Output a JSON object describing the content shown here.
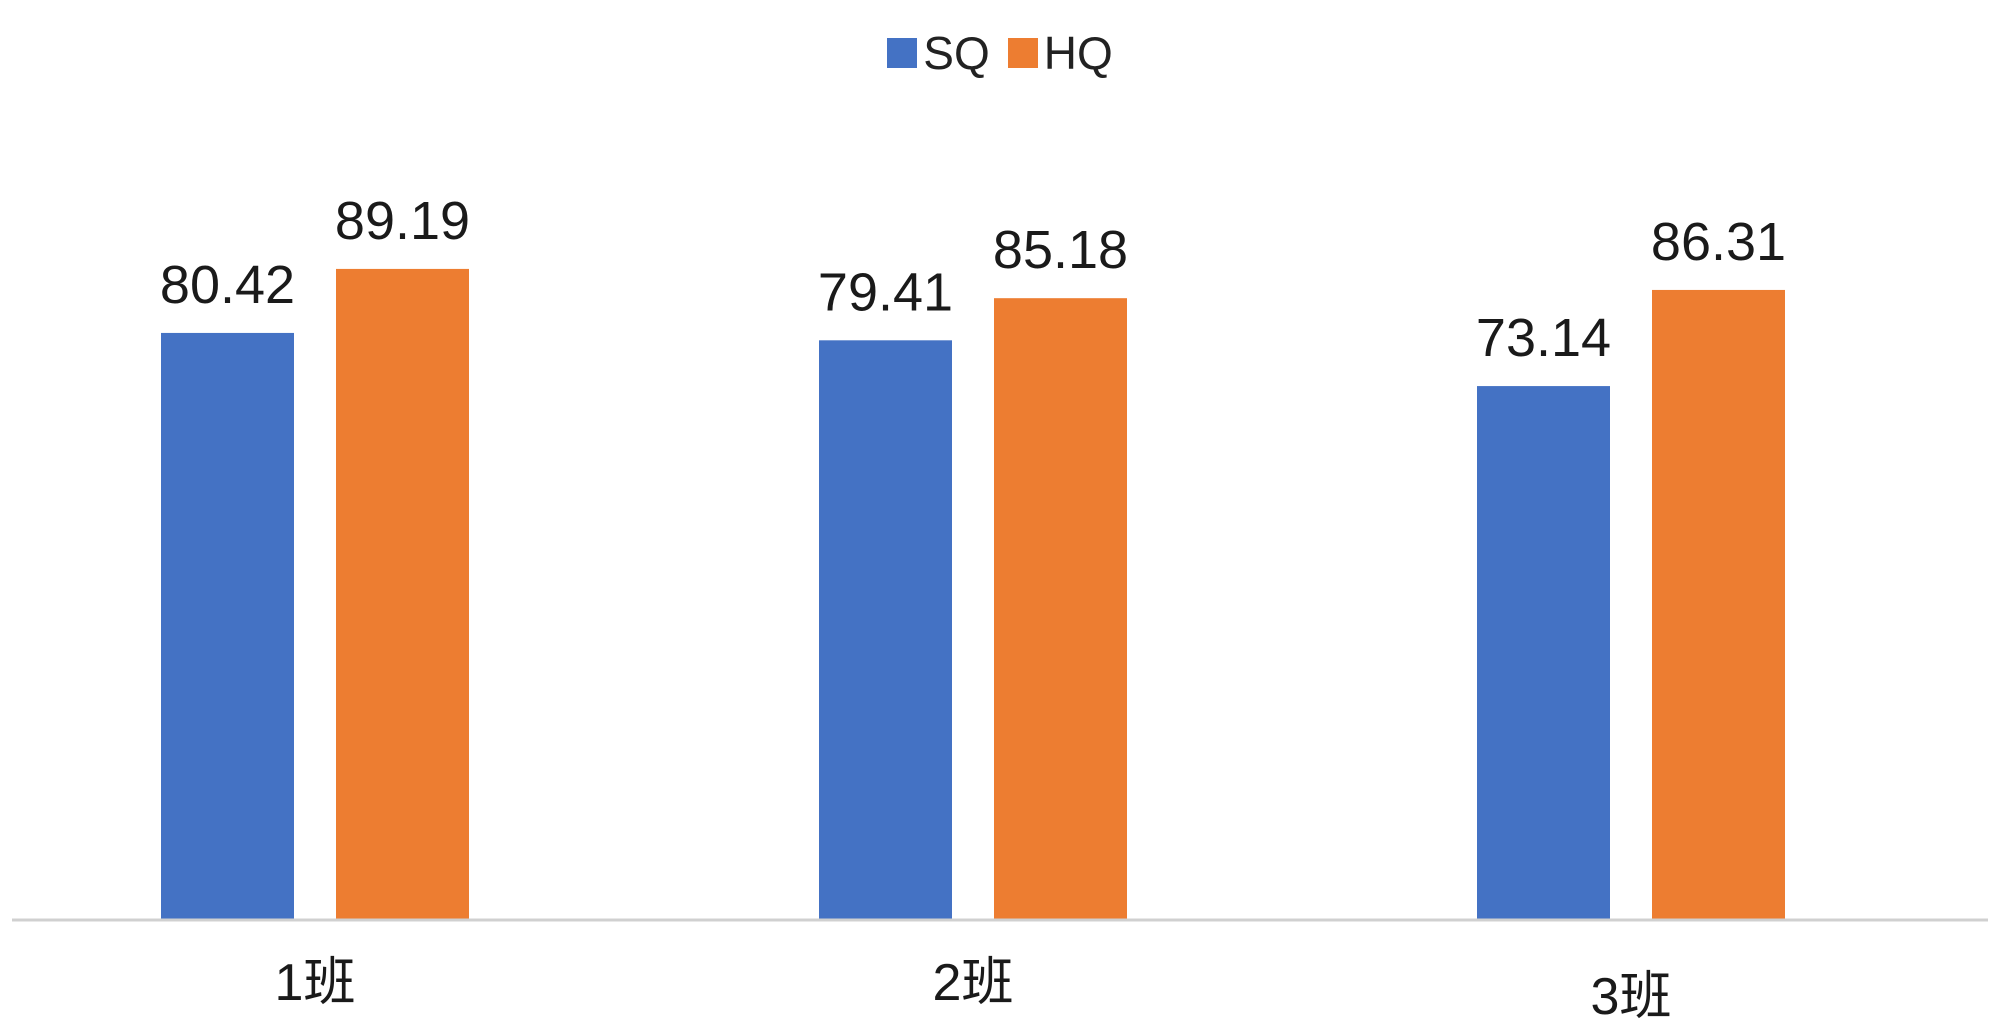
{
  "chart_data": {
    "type": "bar",
    "categories": [
      "1班",
      "2班",
      "3班"
    ],
    "series": [
      {
        "name": "SQ",
        "values": [
          80.42,
          79.41,
          73.14
        ],
        "color": "#4472C4"
      },
      {
        "name": "HQ",
        "values": [
          89.19,
          85.18,
          86.31
        ],
        "color": "#ED7D31"
      }
    ],
    "ylim": [
      0,
      100
    ],
    "grid": false,
    "legend_position": "top-center",
    "data_labels": true
  }
}
